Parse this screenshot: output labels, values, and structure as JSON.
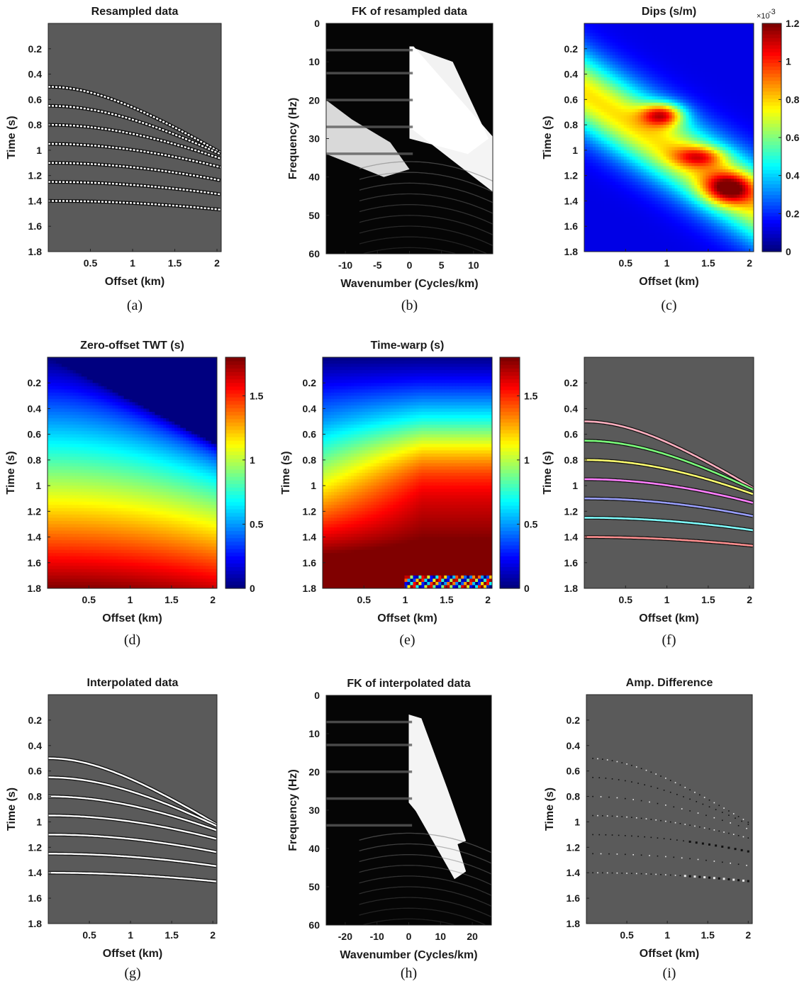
{
  "figure": {
    "panels": [
      {
        "id": "a",
        "caption": "(a)",
        "title": "Resampled data",
        "type": "seismic-gather",
        "xlabel": "Offset (km)",
        "ylabel": "Time (s)",
        "xlim": [
          0,
          2.05
        ],
        "ylim": [
          0,
          1.8
        ],
        "xticks": [
          "0.5",
          "1",
          "1.5",
          "2"
        ],
        "xtick_values": [
          0.5,
          1,
          1.5,
          2
        ],
        "yticks": [
          "0.2",
          "0.4",
          "0.6",
          "0.8",
          "1",
          "1.2",
          "1.4",
          "1.6",
          "1.8"
        ],
        "ytick_values": [
          0.2,
          0.4,
          0.6,
          0.8,
          1.0,
          1.2,
          1.4,
          1.6,
          1.8
        ],
        "background": "#5a5a5a",
        "events": [
          {
            "type": "hyperbola",
            "t0": 0.5,
            "v": 2.3
          },
          {
            "type": "hyperbola",
            "t0": 0.65,
            "v": 2.55
          },
          {
            "type": "hyperbola",
            "t0": 0.8,
            "v": 2.9
          },
          {
            "type": "hyperbola",
            "t0": 0.95,
            "v": 3.3
          },
          {
            "type": "hyperbola",
            "t0": 1.1,
            "v": 3.6
          },
          {
            "type": "hyperbola",
            "t0": 1.25,
            "v": 4.05
          },
          {
            "type": "hyperbola",
            "t0": 1.4,
            "v": 4.6
          }
        ]
      },
      {
        "id": "b",
        "caption": "(b)",
        "title": "FK of resampled data",
        "type": "fk-spectrum",
        "xlabel": "Wavenumber (Cycles/km)",
        "ylabel": "Frequency (Hz)",
        "xlim": [
          -13,
          13
        ],
        "ylim": [
          0,
          60
        ],
        "xticks": [
          "-10",
          "-5",
          "0",
          "5",
          "10"
        ],
        "xtick_values": [
          -10,
          -5,
          0,
          5,
          10
        ],
        "yticks": [
          "0",
          "10",
          "20",
          "30",
          "40",
          "50",
          "60"
        ],
        "ytick_values": [
          0,
          10,
          20,
          30,
          40,
          50,
          60
        ],
        "aliased": true
      },
      {
        "id": "c",
        "caption": "(c)",
        "title": "Dips (s/m)",
        "type": "heatmap",
        "xlabel": "Offset (km)",
        "ylabel": "Time (s)",
        "xlim": [
          0,
          2.05
        ],
        "ylim": [
          0,
          1.8
        ],
        "xticks": [
          "0.5",
          "1",
          "1.5",
          "2"
        ],
        "xtick_values": [
          0.5,
          1,
          1.5,
          2
        ],
        "yticks": [
          "0.2",
          "0.4",
          "0.6",
          "0.8",
          "1",
          "1.2",
          "1.4",
          "1.6",
          "1.8"
        ],
        "ytick_values": [
          0.2,
          0.4,
          0.6,
          0.8,
          1.0,
          1.2,
          1.4,
          1.6,
          1.8
        ],
        "colormap": "jet",
        "colorbar": {
          "range": [
            0,
            1.2
          ],
          "ticks": [
            "0",
            "0.2",
            "0.4",
            "0.6",
            "0.8",
            "1",
            "1.2"
          ],
          "tick_values": [
            0,
            0.2,
            0.4,
            0.6,
            0.8,
            1.0,
            1.2
          ],
          "exponent_base": "×10",
          "exponent_power": "-3"
        }
      },
      {
        "id": "d",
        "caption": "(d)",
        "title": "Zero-offset TWT (s)",
        "type": "heatmap",
        "xlabel": "Offset (km)",
        "ylabel": "Time (s)",
        "xlim": [
          0,
          2.05
        ],
        "ylim": [
          0,
          1.8
        ],
        "xticks": [
          "0.5",
          "1",
          "1.5",
          "2"
        ],
        "xtick_values": [
          0.5,
          1,
          1.5,
          2
        ],
        "yticks": [
          "0.2",
          "0.4",
          "0.6",
          "0.8",
          "1",
          "1.2",
          "1.4",
          "1.6",
          "1.8"
        ],
        "ytick_values": [
          0.2,
          0.4,
          0.6,
          0.8,
          1.0,
          1.2,
          1.4,
          1.6,
          1.8
        ],
        "colormap": "jet",
        "colorbar": {
          "range": [
            0,
            1.8
          ],
          "ticks": [
            "0",
            "0.5",
            "1",
            "1.5"
          ],
          "tick_values": [
            0,
            0.5,
            1.0,
            1.5
          ]
        }
      },
      {
        "id": "e",
        "caption": "(e)",
        "title": "Time-warp (s)",
        "type": "heatmap",
        "xlabel": "Offset (km)",
        "ylabel": "Time (s)",
        "xlim": [
          0,
          2.05
        ],
        "ylim": [
          0,
          1.8
        ],
        "xticks": [
          "0.5",
          "1",
          "1.5",
          "2"
        ],
        "xtick_values": [
          0.5,
          1,
          1.5,
          2
        ],
        "yticks": [
          "0.2",
          "0.4",
          "0.6",
          "0.8",
          "1",
          "1.2",
          "1.4",
          "1.6",
          "1.8"
        ],
        "ytick_values": [
          0.2,
          0.4,
          0.6,
          0.8,
          1.0,
          1.2,
          1.4,
          1.6,
          1.8
        ],
        "colormap": "jet",
        "colorbar": {
          "range": [
            0,
            1.8
          ],
          "ticks": [
            "0",
            "0.5",
            "1",
            "1.5"
          ],
          "tick_values": [
            0,
            0.5,
            1.0,
            1.5
          ]
        }
      },
      {
        "id": "f",
        "caption": "(f)",
        "title": "",
        "type": "seismic-gather-colored",
        "xlabel": "Offset (km)",
        "ylabel": "Time (s)",
        "xlim": [
          0,
          2.05
        ],
        "ylim": [
          0,
          1.8
        ],
        "xticks": [
          "0.5",
          "1",
          "1.5",
          "2"
        ],
        "xtick_values": [
          0.5,
          1,
          1.5,
          2
        ],
        "yticks": [
          "0.2",
          "0.4",
          "0.6",
          "0.8",
          "1",
          "1.2",
          "1.4",
          "1.6",
          "1.8"
        ],
        "ytick_values": [
          0.2,
          0.4,
          0.6,
          0.8,
          1.0,
          1.2,
          1.4,
          1.6,
          1.8
        ],
        "background": "#5a5a5a",
        "event_colors": [
          "#ffb0c0",
          "#7cff7c",
          "#ffff70",
          "#ff80ff",
          "#9aa0ff",
          "#80ffff",
          "#ff9090"
        ]
      },
      {
        "id": "g",
        "caption": "(g)",
        "title": "Interpolated data",
        "type": "seismic-gather",
        "xlabel": "Offset (km)",
        "ylabel": "Time (s)",
        "xlim": [
          0,
          2.05
        ],
        "ylim": [
          0,
          1.8
        ],
        "xticks": [
          "0.5",
          "1",
          "1.5",
          "2"
        ],
        "xtick_values": [
          0.5,
          1,
          1.5,
          2
        ],
        "yticks": [
          "0.2",
          "0.4",
          "0.6",
          "0.8",
          "1",
          "1.2",
          "1.4",
          "1.6",
          "1.8"
        ],
        "ytick_values": [
          0.2,
          0.4,
          0.6,
          0.8,
          1.0,
          1.2,
          1.4,
          1.6,
          1.8
        ],
        "background": "#5a5a5a"
      },
      {
        "id": "h",
        "caption": "(h)",
        "title": "FK of interpolated data",
        "type": "fk-spectrum",
        "xlabel": "Wavenumber (Cycles/km)",
        "ylabel": "Frequency (Hz)",
        "xlim": [
          -26,
          26
        ],
        "ylim": [
          0,
          60
        ],
        "xticks": [
          "-20",
          "-10",
          "0",
          "10",
          "20"
        ],
        "xtick_values": [
          -20,
          -10,
          0,
          10,
          20
        ],
        "yticks": [
          "0",
          "10",
          "20",
          "30",
          "40",
          "50",
          "60"
        ],
        "ytick_values": [
          0,
          10,
          20,
          30,
          40,
          50,
          60
        ],
        "aliased": false
      },
      {
        "id": "i",
        "caption": "(i)",
        "title": "Amp. Difference",
        "type": "seismic-residual",
        "xlabel": "Offset (km)",
        "ylabel": "Time (s)",
        "xlim": [
          0,
          2.05
        ],
        "ylim": [
          0,
          1.8
        ],
        "xticks": [
          "0.5",
          "1",
          "1.5",
          "2"
        ],
        "xtick_values": [
          0.5,
          1,
          1.5,
          2
        ],
        "yticks": [
          "0.2",
          "0.4",
          "0.6",
          "0.8",
          "1",
          "1.2",
          "1.4",
          "1.6",
          "1.8"
        ],
        "ytick_values": [
          0.2,
          0.4,
          0.6,
          0.8,
          1.0,
          1.2,
          1.4,
          1.6,
          1.8
        ],
        "background": "#5a5a5a"
      }
    ]
  }
}
